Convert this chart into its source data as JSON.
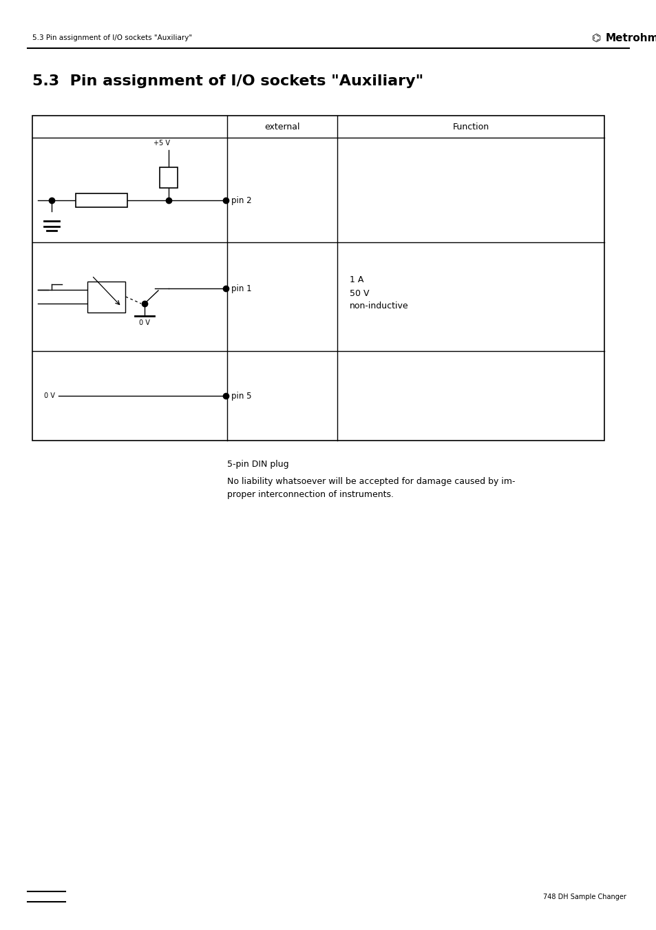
{
  "header_left": "5.3 Pin assignment of I/O sockets \"Auxiliary\"",
  "header_right": "Metrohm",
  "footer_right": "748 DH Sample Changer",
  "section_title": "5.3  Pin assignment of I/O sockets \"Auxiliary\"",
  "col_headers": [
    "",
    "external",
    "Function"
  ],
  "pin2_label": "pin 2",
  "pin1_label": "pin 1",
  "pin5_label": "pin 5",
  "plus5v_label": "+5 V",
  "ov_label1": "0 V",
  "ov_label2": "0 V",
  "func_text": "1 A\n50 V\nnon-inductive",
  "footnote1": "5-pin DIN plug",
  "footnote2": "No liability whatsoever will be accepted for damage caused by im-\nproper interconnection of instruments.",
  "bg_color": "#ffffff",
  "line_color": "#000000",
  "text_color": "#000000"
}
